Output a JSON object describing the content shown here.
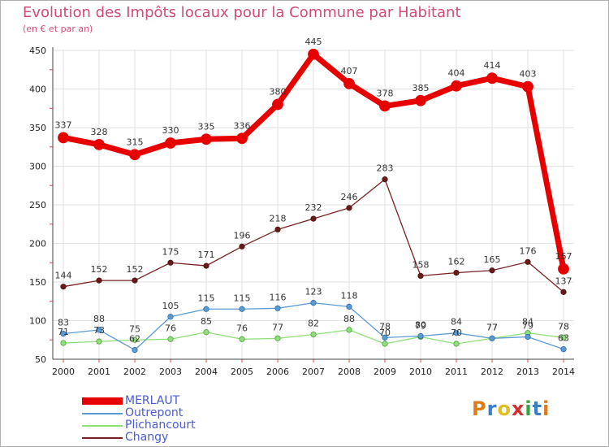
{
  "header": {
    "title": "Evolution des Impôts locaux pour la Commune par Habitant",
    "subtitle": "(en € et par an)"
  },
  "logo": {
    "text": "Proxiti",
    "colors": [
      "#e07b1a",
      "#3a7fc8",
      "#e0c020",
      "#d03030",
      "#3aa040",
      "#3a7fc8",
      "#e07b1a"
    ]
  },
  "chart_data": {
    "type": "line",
    "title": "Evolution des Impôts locaux pour la Commune par Habitant",
    "subtitle": "(en € et par an)",
    "x": [
      2000,
      2001,
      2002,
      2003,
      2004,
      2005,
      2006,
      2007,
      2008,
      2009,
      2010,
      2011,
      2012,
      2013,
      2014
    ],
    "ylim": [
      50,
      450
    ],
    "yticks": [
      50,
      100,
      150,
      200,
      250,
      300,
      350,
      400,
      450
    ],
    "grid": true,
    "legend_position": "bottom-left",
    "series": [
      {
        "name": "MERLAUT",
        "color": "#e60000",
        "values": [
          337,
          328,
          315,
          330,
          335,
          336,
          380,
          445,
          407,
          378,
          385,
          404,
          414,
          403,
          167
        ],
        "labels": [
          "337",
          "328",
          "315",
          "330",
          "335",
          "336",
          "380",
          "445",
          "407",
          "378",
          "385",
          "404",
          "414",
          "403",
          "167"
        ]
      },
      {
        "name": "Outrepont",
        "color": "#5b9bd5",
        "values": [
          83,
          88,
          62,
          105,
          115,
          115,
          116,
          123,
          118,
          78,
          80,
          84,
          77,
          79,
          63
        ],
        "labels": [
          "83",
          "88",
          "62",
          "105",
          "115",
          "115",
          "116",
          "123",
          "118",
          "78",
          "80",
          "84",
          "77",
          "79",
          "63"
        ]
      },
      {
        "name": "Plichancourt",
        "color": "#8fe07a",
        "values": [
          71,
          73,
          75,
          76,
          85,
          76,
          77,
          82,
          88,
          70,
          79,
          70,
          77,
          84,
          78
        ],
        "labels": [
          "71",
          "73",
          "75",
          "76",
          "85",
          "76",
          "77",
          "82",
          "88",
          "70",
          "79",
          "70",
          "77",
          "84",
          "78"
        ]
      },
      {
        "name": "Changy",
        "color": "#7a2020",
        "values": [
          144,
          152,
          152,
          175,
          171,
          196,
          218,
          232,
          246,
          283,
          158,
          162,
          165,
          176,
          137
        ],
        "labels": [
          "144",
          "152",
          "152",
          "175",
          "171",
          "196",
          "218",
          "232",
          "246",
          "283",
          "158",
          "162",
          "165",
          "176",
          "137"
        ]
      }
    ]
  }
}
